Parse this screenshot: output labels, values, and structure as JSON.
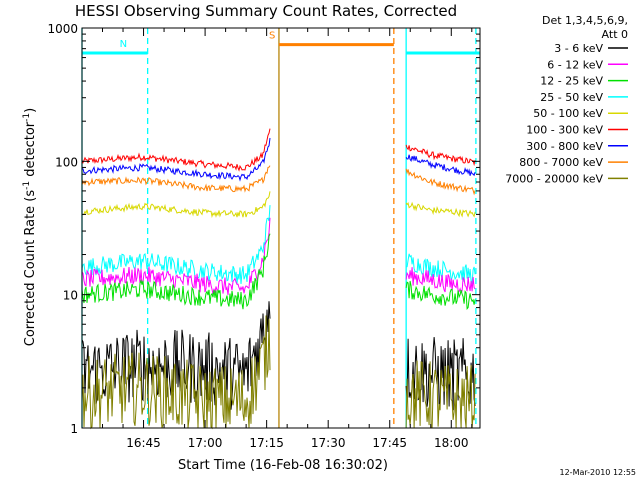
{
  "chart_data": {
    "type": "line",
    "title": "HESSI Observing Summary Count Rates, Corrected",
    "xlabel": "Start Time (16-Feb-08 16:30:02)",
    "ylabel_main": "Corrected Count Rate (s",
    "ylabel_sup1": "-1",
    "ylabel_mid": " detector",
    "ylabel_sup2": "-1",
    "ylabel_end": ")",
    "y_scale": "log",
    "ylim": [
      1,
      1000
    ],
    "xlim": [
      "16:30",
      "18:07"
    ],
    "x_ticks": [
      "16:45",
      "17:00",
      "17:15",
      "17:30",
      "17:45",
      "18:00"
    ],
    "y_ticks": [
      "1",
      "10",
      "100",
      "1000"
    ],
    "legend_placement": "right",
    "legend": {
      "header1": "Det 1,3,4,5,6,9,",
      "header2": "Att 0",
      "entries": [
        {
          "label": "3 - 6 keV",
          "color": "#000000"
        },
        {
          "label": "6 - 12 keV",
          "color": "#ff00ff"
        },
        {
          "label": "12 - 25 keV",
          "color": "#00e000"
        },
        {
          "label": "25 - 50 keV",
          "color": "#00ffff"
        },
        {
          "label": "50 - 100 keV",
          "color": "#d8d800"
        },
        {
          "label": "100 - 300 keV",
          "color": "#ff0000"
        },
        {
          "label": "300 - 800 keV",
          "color": "#0000ff"
        },
        {
          "label": "800 - 7000 keV",
          "color": "#ff8000"
        },
        {
          "label": "7000 - 20000 keV",
          "color": "#808000"
        }
      ]
    },
    "series": [
      {
        "name": "100 - 300 keV",
        "color": "#ff0000",
        "seg1": [
          [
            "16:30",
            100
          ],
          [
            "16:45",
            108
          ],
          [
            "17:00",
            95
          ],
          [
            "17:10",
            90
          ],
          [
            "17:14",
            110
          ],
          [
            "17:16",
            180
          ]
        ],
        "seg2": [
          [
            "17:49",
            130
          ],
          [
            "17:55",
            112
          ],
          [
            "18:00",
            105
          ],
          [
            "18:06",
            98
          ]
        ]
      },
      {
        "name": "300 - 800 keV",
        "color": "#0000ff",
        "seg1": [
          [
            "16:30",
            85
          ],
          [
            "16:45",
            90
          ],
          [
            "17:00",
            80
          ],
          [
            "17:10",
            76
          ],
          [
            "17:14",
            95
          ],
          [
            "17:16",
            150
          ]
        ],
        "seg2": [
          [
            "17:49",
            110
          ],
          [
            "17:55",
            95
          ],
          [
            "18:00",
            88
          ],
          [
            "18:06",
            80
          ]
        ]
      },
      {
        "name": "800 - 7000 keV",
        "color": "#ff8000",
        "seg1": [
          [
            "16:30",
            70
          ],
          [
            "16:45",
            72
          ],
          [
            "17:00",
            63
          ],
          [
            "17:10",
            62
          ],
          [
            "17:14",
            72
          ],
          [
            "17:16",
            100
          ]
        ],
        "seg2": [
          [
            "17:49",
            85
          ],
          [
            "17:55",
            70
          ],
          [
            "18:00",
            65
          ],
          [
            "18:06",
            60
          ]
        ]
      },
      {
        "name": "50 - 100 keV",
        "color": "#d8d800",
        "seg1": [
          [
            "16:30",
            42
          ],
          [
            "16:45",
            46
          ],
          [
            "17:00",
            41
          ],
          [
            "17:10",
            40
          ],
          [
            "17:14",
            45
          ],
          [
            "17:16",
            58
          ]
        ],
        "seg2": [
          [
            "17:49",
            48
          ],
          [
            "17:55",
            43
          ],
          [
            "18:00",
            42
          ],
          [
            "18:06",
            40
          ]
        ]
      },
      {
        "name": "25 - 50 keV",
        "color": "#00ffff",
        "seg1": [
          [
            "16:30",
            16
          ],
          [
            "16:45",
            18
          ],
          [
            "17:00",
            15
          ],
          [
            "17:10",
            14
          ],
          [
            "17:14",
            22
          ],
          [
            "17:16",
            45
          ]
        ],
        "seg2": [
          [
            "17:49",
            18
          ],
          [
            "17:55",
            16
          ],
          [
            "18:00",
            15
          ],
          [
            "18:06",
            14
          ]
        ]
      },
      {
        "name": "6 - 12 keV",
        "color": "#ff00ff",
        "seg1": [
          [
            "16:30",
            13
          ],
          [
            "16:45",
            14
          ],
          [
            "17:00",
            12
          ],
          [
            "17:10",
            11
          ],
          [
            "17:14",
            18
          ],
          [
            "17:16",
            35
          ]
        ],
        "seg2": [
          [
            "17:49",
            14
          ],
          [
            "17:55",
            13
          ],
          [
            "18:00",
            12
          ],
          [
            "18:06",
            12
          ]
        ]
      },
      {
        "name": "12 - 25 keV",
        "color": "#00e000",
        "seg1": [
          [
            "16:30",
            10
          ],
          [
            "16:45",
            11
          ],
          [
            "17:00",
            9.5
          ],
          [
            "17:10",
            9
          ],
          [
            "17:14",
            15
          ],
          [
            "17:16",
            30
          ]
        ],
        "seg2": [
          [
            "17:49",
            11
          ],
          [
            "17:55",
            10
          ],
          [
            "18:00",
            9.5
          ],
          [
            "18:06",
            9
          ]
        ]
      },
      {
        "name": "3 - 6 keV",
        "color": "#000000",
        "seg1": [
          [
            "16:30",
            2.6
          ],
          [
            "16:45",
            3
          ],
          [
            "17:00",
            2.8
          ],
          [
            "17:10",
            2.5
          ],
          [
            "17:14",
            5
          ],
          [
            "17:16",
            10
          ]
        ],
        "seg2": [
          [
            "17:49",
            2.8
          ],
          [
            "17:55",
            2.6
          ],
          [
            "18:00",
            2.5
          ],
          [
            "18:06",
            2.5
          ]
        ]
      },
      {
        "name": "7000 - 20000 keV",
        "color": "#808000",
        "seg1": [
          [
            "16:30",
            1.8
          ],
          [
            "16:45",
            2
          ],
          [
            "17:00",
            1.6
          ],
          [
            "17:10",
            1.6
          ],
          [
            "17:14",
            3
          ],
          [
            "17:16",
            5
          ]
        ],
        "seg2": [
          [
            "17:49",
            1.8
          ],
          [
            "17:55",
            1.7
          ],
          [
            "18:00",
            1.6
          ],
          [
            "18:06",
            1.6
          ]
        ]
      }
    ],
    "state_bars": [
      {
        "label": "N",
        "color": "#00ffff",
        "level": 650,
        "from": "16:30",
        "to": "16:46"
      },
      {
        "label": "S",
        "color": "#ff8000",
        "level": 750,
        "from": "17:18",
        "to": "17:46"
      },
      {
        "label": "",
        "color": "#00ffff",
        "level": 650,
        "from": "17:49",
        "to": "18:07"
      }
    ],
    "markers": [
      {
        "time": "16:30",
        "color": "#00ffff",
        "style": "solid"
      },
      {
        "time": "16:46",
        "color": "#00ffff",
        "style": "dashed"
      },
      {
        "time": "17:18",
        "color": "#b8860b",
        "style": "solid"
      },
      {
        "time": "17:46",
        "color": "#ff8000",
        "style": "dashed"
      },
      {
        "time": "17:49",
        "color": "#00ffff",
        "style": "solid"
      },
      {
        "time": "18:06",
        "color": "#00ffff",
        "style": "dashed"
      }
    ],
    "timestamp": "12-Mar-2010 12:55"
  }
}
